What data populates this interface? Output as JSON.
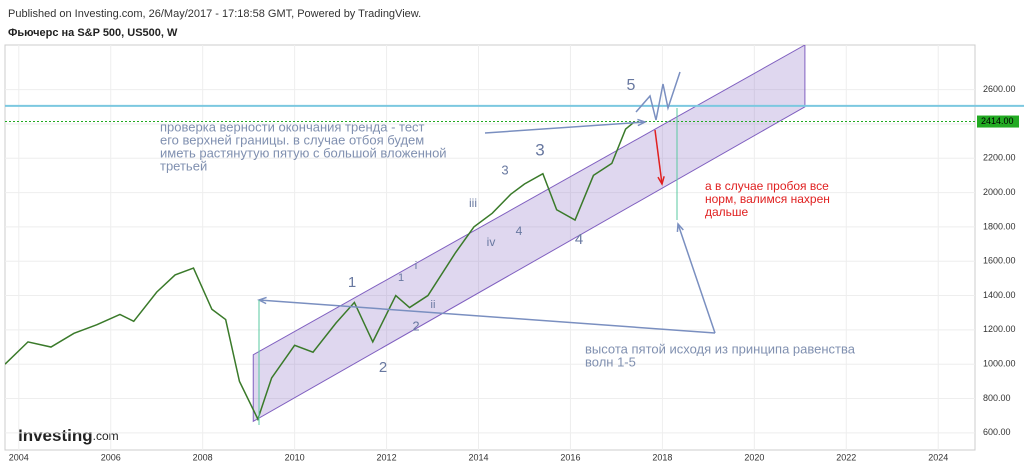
{
  "header": "Published on Investing.com, 26/May/2017 - 17:18:58 GMT, Powered by TradingView.",
  "chart_data": {
    "type": "line",
    "title": "Фьючерс на S&P 500, US500, W",
    "x": [
      2003.7,
      2004.2,
      2004.7,
      2005.2,
      2005.7,
      2006.2,
      2006.5,
      2007.0,
      2007.4,
      2007.8,
      2008.2,
      2008.5,
      2008.8,
      2009.2,
      2009.5,
      2010.0,
      2010.4,
      2010.9,
      2011.3,
      2011.7,
      2012.2,
      2012.5,
      2012.9,
      2013.5,
      2013.9,
      2014.3,
      2014.7,
      2015.0,
      2015.4,
      2015.7,
      2016.1,
      2016.5,
      2016.9,
      2017.2,
      2017.4
    ],
    "series": [
      {
        "name": "US500",
        "color": "#3a7a2a",
        "values": [
          1000,
          1130,
          1100,
          1180,
          1230,
          1290,
          1250,
          1420,
          1520,
          1560,
          1320,
          1260,
          900,
          680,
          920,
          1110,
          1070,
          1240,
          1360,
          1130,
          1400,
          1330,
          1400,
          1650,
          1800,
          1880,
          1990,
          2050,
          2110,
          1900,
          1840,
          2100,
          2170,
          2370,
          2414
        ]
      }
    ],
    "xlim": [
      2003.7,
      2024.8
    ],
    "xticks": [
      2004,
      2006,
      2008,
      2010,
      2012,
      2014,
      2016,
      2018,
      2020,
      2022,
      2024
    ],
    "ylim": [
      500,
      2860
    ],
    "yticks": [
      {
        "value": 600,
        "label": "600.00"
      },
      {
        "value": 800,
        "label": "800.00"
      },
      {
        "value": 1000,
        "label": "1000.00"
      },
      {
        "value": 1200,
        "label": "1200.00"
      },
      {
        "value": 1400,
        "label": "1400.00"
      },
      {
        "value": 1600,
        "label": "1600.00"
      },
      {
        "value": 1800,
        "label": "1800.00"
      },
      {
        "value": 2000,
        "label": "2000.00"
      },
      {
        "value": 2200,
        "label": "2200.00"
      },
      {
        "value": 2400,
        "label": "2400.00"
      },
      {
        "value": 2600,
        "label": "2600.00"
      }
    ],
    "grid": true,
    "last_price": {
      "value": 2414,
      "label": "2414.00",
      "color": "#22aa22"
    },
    "resistance": {
      "value": 2505,
      "color": "#7cc8e0"
    },
    "channel": {
      "x": [
        2009.1,
        2021.1
      ],
      "lower": [
        667,
        2500
      ],
      "upper": [
        1055,
        2860
      ],
      "color": "#8060c0"
    },
    "wave_labels": [
      "1",
      "2",
      "1",
      "i",
      "2",
      "ii",
      "iii",
      "3",
      "iv",
      "4",
      "3",
      "4",
      "5"
    ],
    "notes": [
      [
        "проверка верности окончания тренда - тест",
        "его верхней границы. в случае отбоя будем",
        "иметь растянутую пятую с большой вложенной",
        "третьей"
      ],
      [
        "а в случае пробоя все",
        "норм, валимся нахрен",
        "дальше"
      ],
      [
        "высота пятой исходя из принципа равенства",
        "волн 1-5"
      ]
    ],
    "logo": "Investing",
    "logo_suffix": ".com"
  }
}
